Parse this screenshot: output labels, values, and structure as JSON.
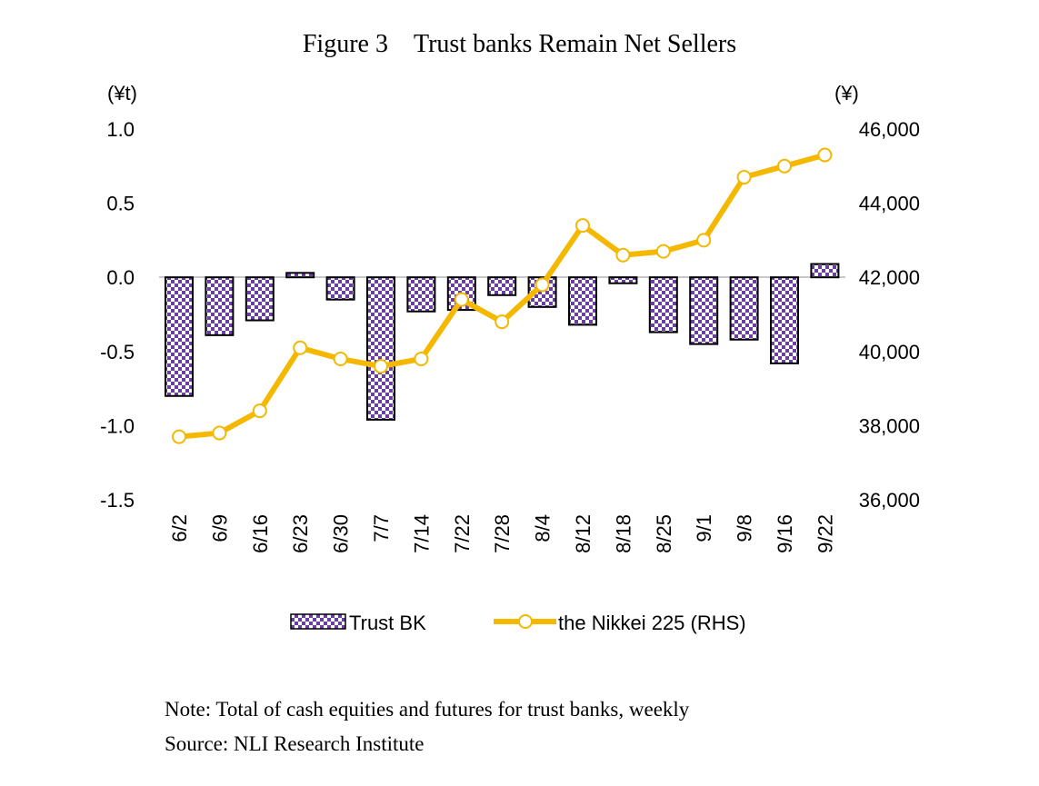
{
  "chart_data": {
    "type": "bar+line",
    "title": "Figure 3　Trust banks Remain Net Sellers",
    "categories": [
      "6/2",
      "6/9",
      "6/16",
      "6/23",
      "6/30",
      "7/7",
      "7/14",
      "7/22",
      "7/28",
      "8/4",
      "8/12",
      "8/18",
      "8/25",
      "9/1",
      "9/8",
      "9/16",
      "9/22"
    ],
    "left_axis": {
      "unit": "(¥t)",
      "ylim": [
        -1.5,
        1.0
      ],
      "ticks": [
        "1.0",
        "0.5",
        "0.0",
        "-0.5",
        "-1.0",
        "-1.5"
      ],
      "tick_values": [
        1.0,
        0.5,
        0.0,
        -0.5,
        -1.0,
        -1.5
      ]
    },
    "right_axis": {
      "unit": "(¥)",
      "ylim": [
        36000,
        46000
      ],
      "ticks": [
        "46,000",
        "44,000",
        "42,000",
        "40,000",
        "38,000",
        "36,000"
      ],
      "tick_values": [
        46000,
        44000,
        42000,
        40000,
        38000,
        36000
      ]
    },
    "series": [
      {
        "name": "Trust BK",
        "type": "bar",
        "axis": "left",
        "color": "#6b3fa0",
        "values": [
          -0.8,
          -0.39,
          -0.29,
          0.03,
          -0.15,
          -0.96,
          -0.23,
          -0.22,
          -0.12,
          -0.2,
          -0.32,
          -0.04,
          -0.37,
          -0.45,
          -0.42,
          -0.58,
          0.09
        ]
      },
      {
        "name": "the Nikkei 225 (RHS)",
        "type": "line",
        "axis": "right",
        "color": "#f5b800",
        "values": [
          37700,
          37800,
          38400,
          40100,
          39800,
          39600,
          39800,
          41400,
          40800,
          41800,
          43400,
          42600,
          42700,
          43000,
          44700,
          45000,
          45300
        ]
      }
    ],
    "grid": false,
    "legend": "bottom"
  },
  "notes": {
    "note": "Note: Total of cash equities and futures for trust banks, weekly",
    "source": "Source: NLI Research Institute"
  }
}
